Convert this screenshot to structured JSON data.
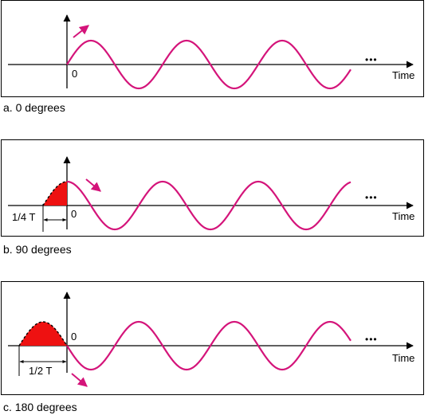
{
  "panels": [
    {
      "caption": "a. 0 degrees",
      "phase_degrees": 0,
      "origin_label": "0",
      "time_label": "Time",
      "shift_label": "",
      "ellipsis": "•••",
      "arrow_direction": "up"
    },
    {
      "caption": "b. 90 degrees",
      "phase_degrees": 90,
      "origin_label": "0",
      "time_label": "Time",
      "shift_label": "1/4 T",
      "ellipsis": "•••",
      "arrow_direction": "down"
    },
    {
      "caption": "c. 180 degrees",
      "phase_degrees": 180,
      "origin_label": "0",
      "time_label": "Time",
      "shift_label": "1/2 T",
      "ellipsis": "•••",
      "arrow_direction": "down"
    }
  ],
  "colors": {
    "wave": "#d4147a",
    "shaded_area": "#ee1111",
    "axis": "#000000"
  }
}
